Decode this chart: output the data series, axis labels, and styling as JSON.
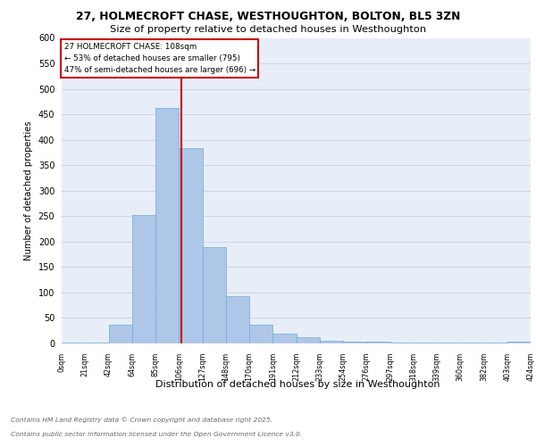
{
  "title_line1": "27, HOLMECROFT CHASE, WESTHOUGHTON, BOLTON, BL5 3ZN",
  "title_line2": "Size of property relative to detached houses in Westhoughton",
  "xlabel": "Distribution of detached houses by size in Westhoughton",
  "ylabel": "Number of detached properties",
  "bin_labels": [
    "0sqm",
    "21sqm",
    "42sqm",
    "64sqm",
    "85sqm",
    "106sqm",
    "127sqm",
    "148sqm",
    "170sqm",
    "191sqm",
    "212sqm",
    "233sqm",
    "254sqm",
    "276sqm",
    "297sqm",
    "318sqm",
    "339sqm",
    "360sqm",
    "382sqm",
    "403sqm",
    "424sqm"
  ],
  "bar_values": [
    1,
    2,
    36,
    253,
    463,
    383,
    190,
    93,
    36,
    20,
    12,
    5,
    4,
    4,
    2,
    2,
    2,
    1,
    1,
    4
  ],
  "bar_color": "#aec6e8",
  "bar_edge_color": "#6aaed6",
  "grid_color": "#cdd5e5",
  "background_color": "#e8eef8",
  "vline_x": 5.095,
  "annotation_text": "27 HOLMECROFT CHASE: 108sqm\n← 53% of detached houses are smaller (795)\n47% of semi-detached houses are larger (696) →",
  "annotation_box_facecolor": "#ffffff",
  "annotation_box_edgecolor": "#cc0000",
  "vline_color": "#cc0000",
  "footer_line1": "Contains HM Land Registry data © Crown copyright and database right 2025.",
  "footer_line2": "Contains public sector information licensed under the Open Government Licence v3.0.",
  "ylim_max": 600,
  "ytick_step": 50
}
